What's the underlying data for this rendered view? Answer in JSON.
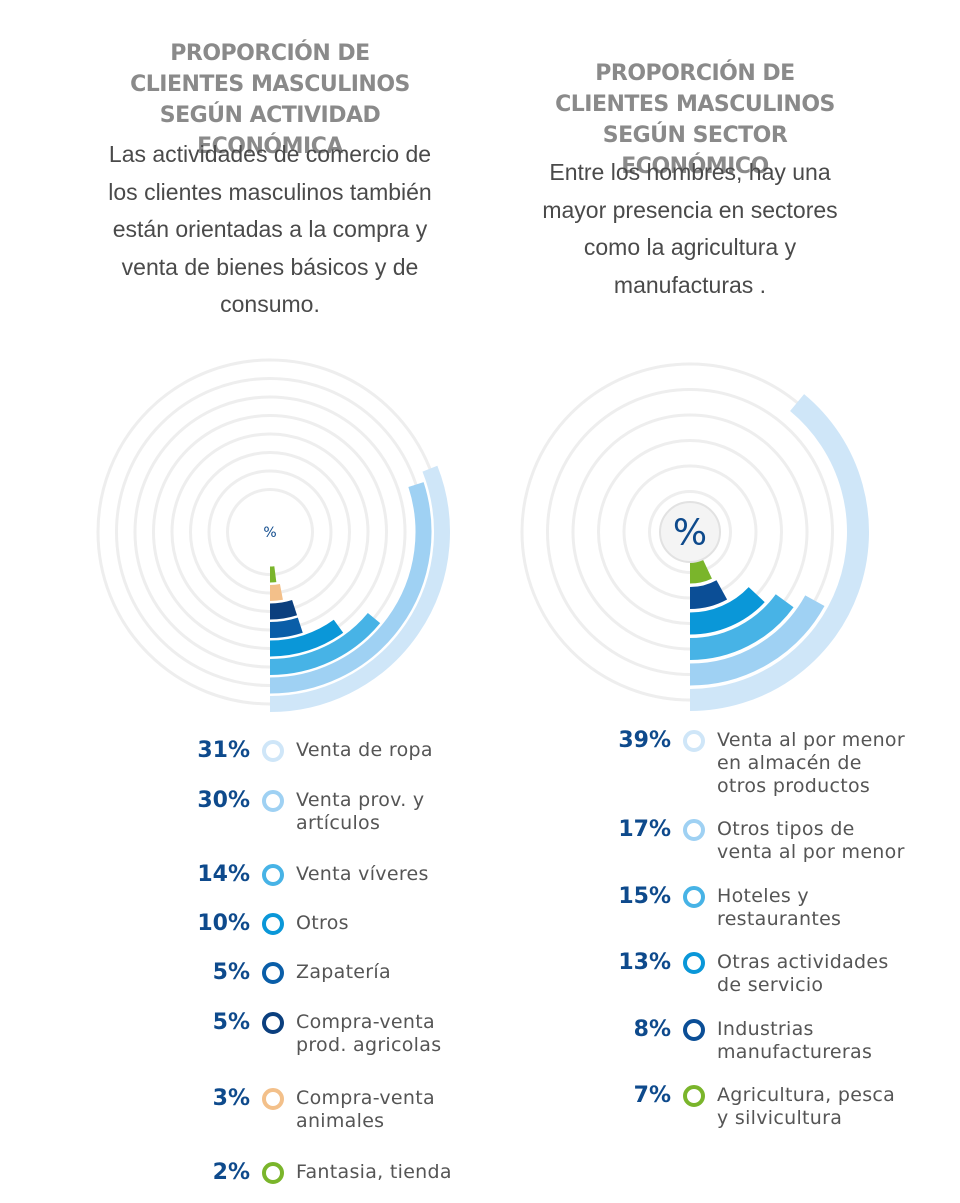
{
  "left": {
    "title": "PROPORCIÓN DE CLIENTES MASCULINOS SEGÚN ACTIVIDAD ECONÓMICA",
    "subtitle": "Las actividades de comercio de los clientes masculinos también están orientadas a la compra y venta de bienes básicos y de consumo.",
    "center_symbol": "%"
  },
  "right": {
    "title": "PROPORCIÓN DE CLIENTES MASCULINOS SEGÚN SECTOR ECONÓMICO",
    "subtitle": "Entre los hombres, hay una mayor presencia en sectores como la agricultura y manufacturas .",
    "center_symbol": "%"
  },
  "chart_data": [
    {
      "type": "radial-bar",
      "title": "PROPORCIÓN DE CLIENTES MASCULINOS SEGÚN ACTIVIDAD ECONÓMICA",
      "unit": "%",
      "max": 100,
      "items": [
        {
          "label": "Venta de ropa",
          "pct_text": "31%",
          "value": 31,
          "color": "#cfe6f8"
        },
        {
          "label": "Venta prov. y artículos",
          "pct_text": "30%",
          "value": 30,
          "color": "#9fd1f3"
        },
        {
          "label": "Venta víveres",
          "pct_text": "14%",
          "value": 14,
          "color": "#47b3e6"
        },
        {
          "label": "Otros",
          "pct_text": "10%",
          "value": 10,
          "color": "#0a97d8"
        },
        {
          "label": "Zapatería",
          "pct_text": "5%",
          "value": 5,
          "color": "#0a5ea8"
        },
        {
          "label": "Compra-venta prod. agricolas",
          "pct_text": "5%",
          "value": 5,
          "color": "#0b3f7e"
        },
        {
          "label": "Compra-venta animales",
          "pct_text": "3%",
          "value": 3,
          "color": "#f3c08a"
        },
        {
          "label": "Fantasia, tienda",
          "pct_text": "2%",
          "value": 2,
          "color": "#7ab52b"
        }
      ]
    },
    {
      "type": "radial-bar",
      "title": "PROPORCIÓN DE CLIENTES MASCULINOS SEGÚN SECTOR ECONÓMICO",
      "unit": "%",
      "max": 100,
      "items": [
        {
          "label": "Venta al por menor en almacén de otros productos",
          "pct_text": "39%",
          "value": 39,
          "color": "#cfe6f8"
        },
        {
          "label": "Otros tipos de venta al por menor",
          "pct_text": "17%",
          "value": 17,
          "color": "#9fd1f3"
        },
        {
          "label": "Hoteles y restaurantes",
          "pct_text": "15%",
          "value": 15,
          "color": "#47b3e6"
        },
        {
          "label": "Otras actividades de servicio",
          "pct_text": "13%",
          "value": 13,
          "color": "#0a97d8"
        },
        {
          "label": "Industrias manufactureras",
          "pct_text": "8%",
          "value": 8,
          "color": "#0b4e96"
        },
        {
          "label": "Agricultura, pesca y silvicultura",
          "pct_text": "7%",
          "value": 7,
          "color": "#7ab52b"
        }
      ]
    }
  ]
}
